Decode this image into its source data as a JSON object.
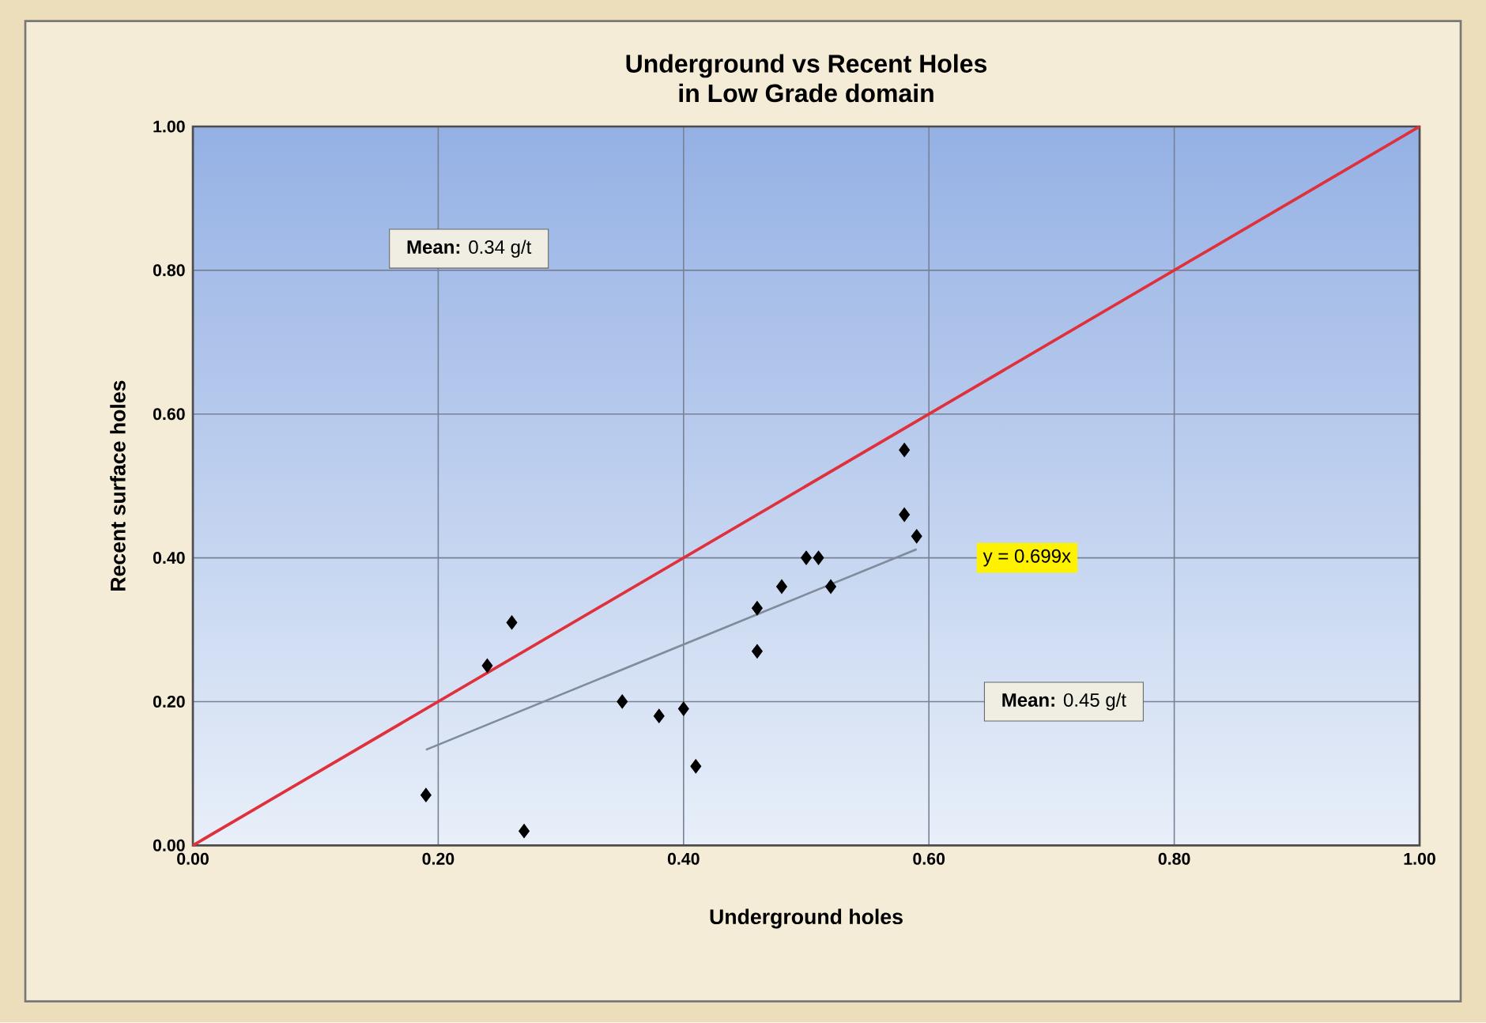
{
  "chart_data": {
    "type": "scatter",
    "title": "Underground vs Recent Holes",
    "subtitle": "in Low Grade domain",
    "xlabel": "Underground holes",
    "ylabel": "Recent surface holes",
    "xlim": [
      0,
      1
    ],
    "ylim": [
      0,
      1
    ],
    "xticks": [
      {
        "value": 0,
        "label": "0.00"
      },
      {
        "value": 0.2,
        "label": "0.20"
      },
      {
        "value": 0.4,
        "label": "0.40"
      },
      {
        "value": 0.6,
        "label": "0.60"
      },
      {
        "value": 0.8,
        "label": "0.80"
      },
      {
        "value": 1,
        "label": "1.00"
      }
    ],
    "yticks": [
      {
        "value": 0,
        "label": "0.00"
      },
      {
        "value": 0.2,
        "label": "0.20"
      },
      {
        "value": 0.4,
        "label": "0.40"
      },
      {
        "value": 0.6,
        "label": "0.60"
      },
      {
        "value": 0.8,
        "label": "0.80"
      },
      {
        "value": 1,
        "label": "1.00"
      }
    ],
    "grid": true,
    "series": [
      {
        "marker": "diamond",
        "color": "#000000",
        "x": [
          0.19,
          0.24,
          0.26,
          0.27,
          0.35,
          0.38,
          0.4,
          0.41,
          0.46,
          0.46,
          0.48,
          0.5,
          0.51,
          0.52,
          0.58,
          0.58,
          0.59
        ],
        "values": [
          0.07,
          0.25,
          0.31,
          0.02,
          0.2,
          0.18,
          0.19,
          0.11,
          0.33,
          0.27,
          0.36,
          0.4,
          0.4,
          0.36,
          0.55,
          0.46,
          0.43
        ]
      },
      {
        "type": "line",
        "marker": "none",
        "color": "#e0303c",
        "x": [
          0,
          1
        ],
        "values": [
          0,
          1
        ]
      },
      {
        "type": "line",
        "marker": "none",
        "color": "#7f8c99",
        "x": [
          0.19,
          0.59
        ],
        "values": [
          0.133,
          0.412
        ]
      }
    ],
    "annotations": [
      "**Mean:** 0.34 g/t",
      "**Mean:** 0.45 g/t",
      "y = 0.699x"
    ]
  }
}
